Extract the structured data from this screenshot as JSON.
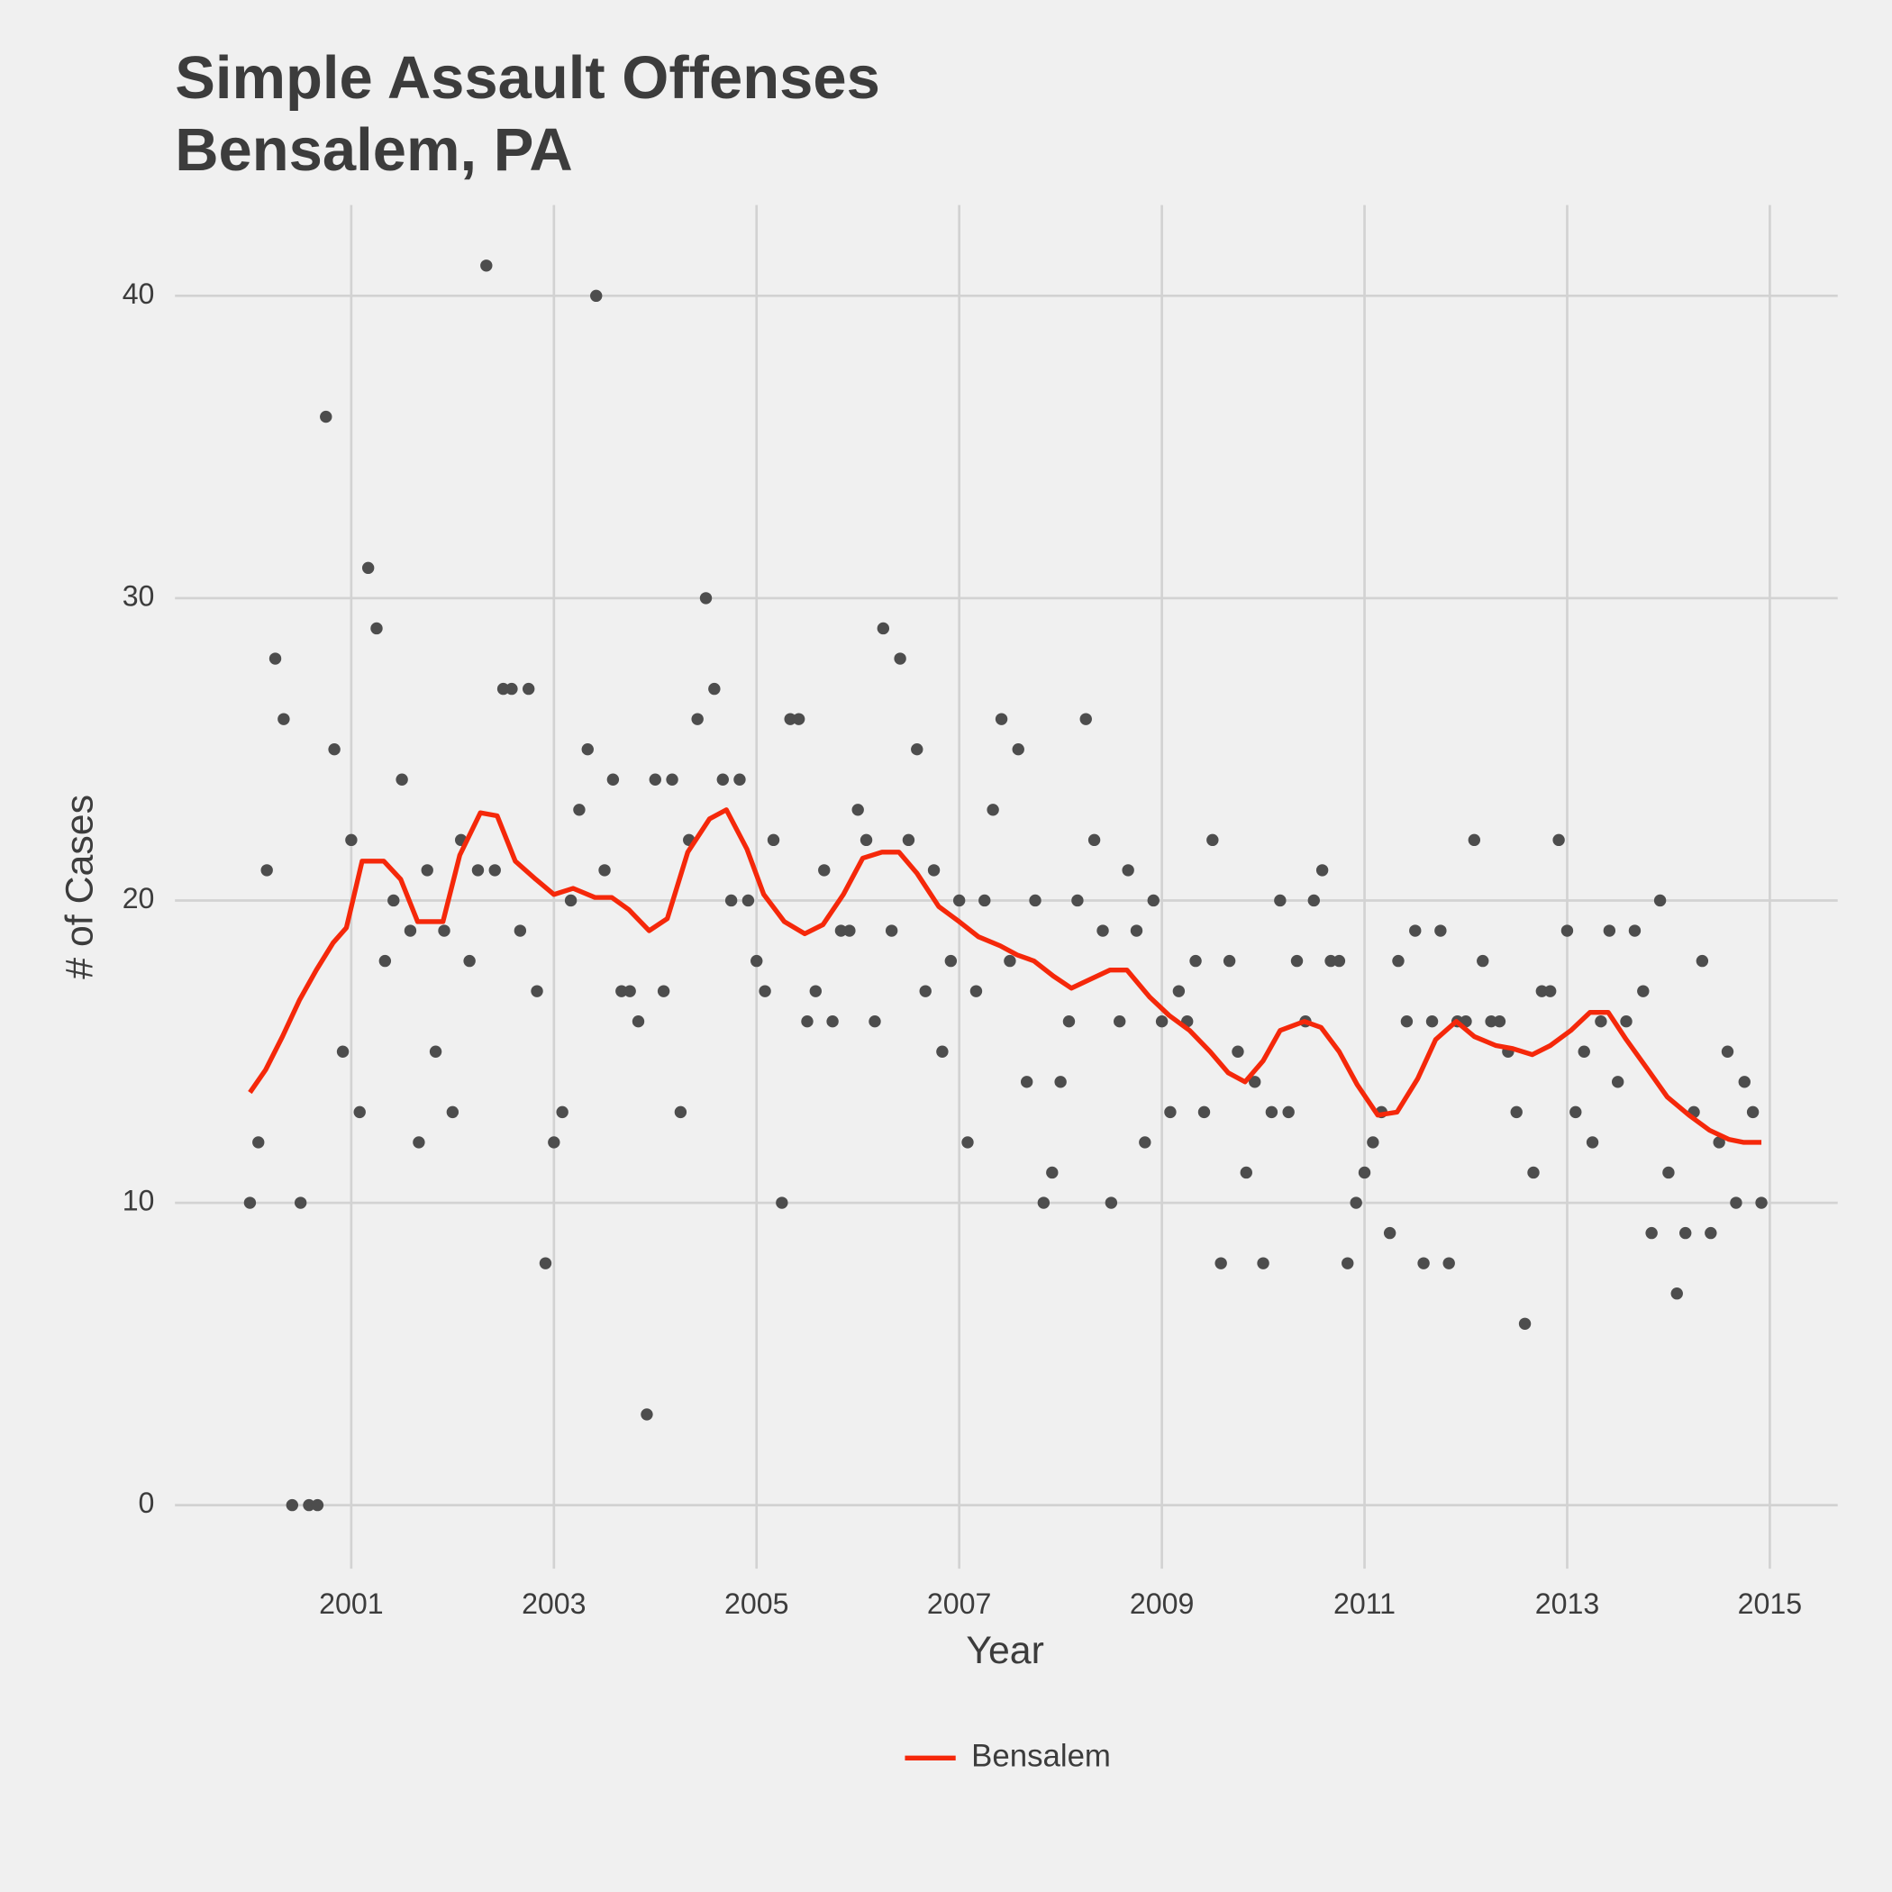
{
  "chart_data": {
    "type": "scatter",
    "title": [
      "Simple Assault Offenses",
      "Bensalem, PA"
    ],
    "x_label": "Year",
    "y_label": "# of Cases",
    "xlim": [
      1999.26,
      2015.67
    ],
    "ylim": [
      -2.1,
      43
    ],
    "xticks": [
      2001,
      2003,
      2005,
      2007,
      2009,
      2011,
      2013,
      2015
    ],
    "yticks": [
      0,
      10,
      20,
      30,
      40
    ],
    "grid": true,
    "legend": "bottom",
    "series": [
      {
        "type": "scatter",
        "color": "#4d4d4d",
        "x": [
          2000,
          2000.083,
          2000.167,
          2000.25,
          2000.333,
          2000.417,
          2000.5,
          2000.583,
          2000.667,
          2000.75,
          2000.833,
          2000.917,
          2001,
          2001.083,
          2001.167,
          2001.25,
          2001.333,
          2001.417,
          2001.5,
          2001.583,
          2001.667,
          2001.75,
          2001.833,
          2001.917,
          2002,
          2002.083,
          2002.167,
          2002.25,
          2002.333,
          2002.417,
          2002.5,
          2002.583,
          2002.667,
          2002.75,
          2002.833,
          2002.917,
          2003,
          2003.083,
          2003.167,
          2003.25,
          2003.333,
          2003.417,
          2003.5,
          2003.583,
          2003.667,
          2003.75,
          2003.833,
          2003.917,
          2004,
          2004.083,
          2004.167,
          2004.25,
          2004.333,
          2004.417,
          2004.5,
          2004.583,
          2004.667,
          2004.75,
          2004.833,
          2004.917,
          2005,
          2005.083,
          2005.167,
          2005.25,
          2005.333,
          2005.417,
          2005.5,
          2005.583,
          2005.667,
          2005.75,
          2005.833,
          2005.917,
          2006,
          2006.083,
          2006.167,
          2006.25,
          2006.333,
          2006.417,
          2006.5,
          2006.583,
          2006.667,
          2006.75,
          2006.833,
          2006.917,
          2007,
          2007.083,
          2007.167,
          2007.25,
          2007.333,
          2007.417,
          2007.5,
          2007.583,
          2007.667,
          2007.75,
          2007.833,
          2007.917,
          2008,
          2008.083,
          2008.167,
          2008.25,
          2008.333,
          2008.417,
          2008.5,
          2008.583,
          2008.667,
          2008.75,
          2008.833,
          2008.917,
          2009,
          2009.083,
          2009.167,
          2009.25,
          2009.333,
          2009.417,
          2009.5,
          2009.583,
          2009.667,
          2009.75,
          2009.833,
          2009.917,
          2010,
          2010.083,
          2010.167,
          2010.25,
          2010.333,
          2010.417,
          2010.5,
          2010.583,
          2010.667,
          2010.75,
          2010.833,
          2010.917,
          2011,
          2011.083,
          2011.167,
          2011.25,
          2011.333,
          2011.417,
          2011.5,
          2011.583,
          2011.667,
          2011.75,
          2011.833,
          2011.917,
          2012,
          2012.083,
          2012.167,
          2012.25,
          2012.333,
          2012.417,
          2012.5,
          2012.583,
          2012.667,
          2012.75,
          2012.833,
          2012.917,
          2013,
          2013.083,
          2013.167,
          2013.25,
          2013.333,
          2013.417,
          2013.5,
          2013.583,
          2013.667,
          2013.75,
          2013.833,
          2013.917,
          2014,
          2014.083,
          2014.167,
          2014.25,
          2014.333,
          2014.417,
          2014.5,
          2014.583,
          2014.667,
          2014.75,
          2014.833,
          2014.917
        ],
        "values": [
          10,
          12,
          21,
          28,
          26,
          0,
          10,
          0,
          0,
          36,
          25,
          15,
          22,
          13,
          31,
          29,
          18,
          20,
          24,
          19,
          12,
          21,
          15,
          19,
          13,
          22,
          18,
          21,
          41,
          21,
          27,
          27,
          19,
          27,
          17,
          8,
          12,
          13,
          20,
          23,
          25,
          40,
          21,
          24,
          17,
          17,
          16,
          3,
          24,
          17,
          24,
          13,
          22,
          26,
          30,
          27,
          24,
          20,
          24,
          20,
          18,
          17,
          22,
          10,
          26,
          26,
          16,
          17,
          21,
          16,
          19,
          19,
          23,
          22,
          16,
          29,
          19,
          28,
          22,
          25,
          17,
          21,
          15,
          18,
          20,
          12,
          17,
          20,
          23,
          26,
          18,
          25,
          14,
          20,
          10,
          11,
          14,
          16,
          20,
          26,
          22,
          19,
          10,
          16,
          21,
          19,
          12,
          20,
          16,
          13,
          17,
          16,
          18,
          13,
          22,
          8,
          18,
          15,
          11,
          14,
          8,
          13,
          20,
          13,
          18,
          16,
          20,
          21,
          18,
          18,
          8,
          10,
          11,
          12,
          13,
          9,
          18,
          16,
          19,
          8,
          16,
          19,
          8,
          16,
          16,
          22,
          18,
          16,
          16,
          15,
          13,
          6,
          11,
          17,
          17,
          22,
          19,
          13,
          15,
          12,
          16,
          19,
          14,
          16,
          19,
          17,
          9,
          20,
          11,
          7,
          9,
          13,
          18,
          9,
          12,
          15,
          10,
          14,
          13,
          10
        ]
      },
      {
        "type": "line",
        "name": "Bensalem",
        "color": "#f5280a",
        "x": [
          2000,
          2000.155,
          2000.321,
          2000.488,
          2000.655,
          2000.821,
          2000.952,
          2001.107,
          2001.321,
          2001.488,
          2001.655,
          2001.905,
          2002.071,
          2002.274,
          2002.44,
          2002.619,
          2002.821,
          2003,
          2003.19,
          2003.405,
          2003.571,
          2003.738,
          2003.94,
          2004.119,
          2004.321,
          2004.536,
          2004.702,
          2004.905,
          2005.071,
          2005.274,
          2005.476,
          2005.655,
          2005.857,
          2006.048,
          2006.238,
          2006.405,
          2006.583,
          2006.798,
          2007,
          2007.19,
          2007.405,
          2007.571,
          2007.738,
          2007.929,
          2008.107,
          2008.298,
          2008.488,
          2008.655,
          2008.881,
          2009.071,
          2009.274,
          2009.476,
          2009.655,
          2009.821,
          2010,
          2010.167,
          2010.405,
          2010.571,
          2010.75,
          2010.929,
          2011.131,
          2011.321,
          2011.524,
          2011.702,
          2011.905,
          2012.083,
          2012.298,
          2012.464,
          2012.655,
          2012.833,
          2013.036,
          2013.226,
          2013.405,
          2013.583,
          2013.798,
          2013.988,
          2014.202,
          2014.405,
          2014.595,
          2014.738,
          2014.917
        ],
        "values": [
          13.65,
          14.4,
          15.5,
          16.7,
          17.7,
          18.6,
          19.1,
          21.3,
          21.3,
          20.7,
          19.3,
          19.3,
          21.5,
          22.9,
          22.8,
          21.3,
          20.7,
          20.2,
          20.4,
          20.1,
          20.1,
          19.7,
          19.0,
          19.4,
          21.6,
          22.7,
          23.0,
          21.7,
          20.2,
          19.3,
          18.9,
          19.2,
          20.2,
          21.4,
          21.6,
          21.6,
          20.9,
          19.8,
          19.3,
          18.8,
          18.5,
          18.2,
          18.0,
          17.5,
          17.1,
          17.4,
          17.7,
          17.7,
          16.8,
          16.2,
          15.7,
          15.0,
          14.3,
          14.0,
          14.7,
          15.7,
          16.0,
          15.8,
          15.0,
          13.9,
          12.9,
          13.0,
          14.1,
          15.4,
          16.0,
          15.5,
          15.2,
          15.1,
          14.9,
          15.2,
          15.7,
          16.3,
          16.3,
          15.4,
          14.4,
          13.5,
          12.9,
          12.4,
          12.1,
          12.0,
          12.0
        ]
      }
    ]
  }
}
